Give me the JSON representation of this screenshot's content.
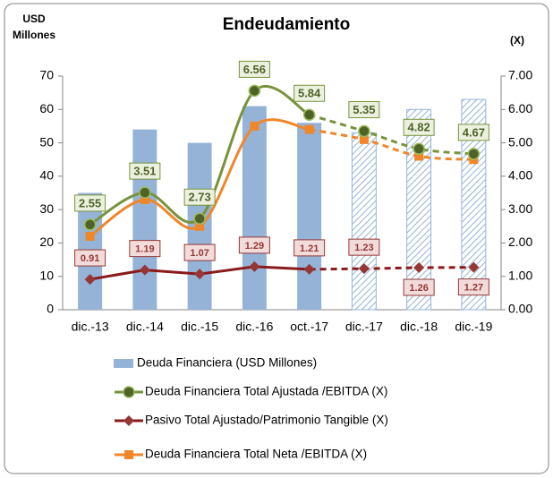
{
  "chart_data": {
    "type": "bar-line",
    "title": "Endeudamiento",
    "ylabel": "USD Millones",
    "y2label": "(X)",
    "categories": [
      "dic.-13",
      "dic.-14",
      "dic.-15",
      "dic.-16",
      "oct.-17",
      "dic.-17",
      "dic.-18",
      "dic.-19"
    ],
    "projected_from": 5,
    "ylim": [
      0,
      70
    ],
    "yticks": [
      0,
      10,
      20,
      30,
      40,
      50,
      60,
      70
    ],
    "y2lim": [
      0,
      7
    ],
    "y2ticks": [
      {
        "value": 0,
        "label": "0.00"
      },
      {
        "value": 1,
        "label": "1.00"
      },
      {
        "value": 2,
        "label": "2.00"
      },
      {
        "value": 3,
        "label": "3.00"
      },
      {
        "value": 4,
        "label": "4.00"
      },
      {
        "value": 5,
        "label": "5.00"
      },
      {
        "value": 6,
        "label": "6.00"
      },
      {
        "value": 7,
        "label": "7.00"
      }
    ],
    "series": [
      {
        "name": "Deuda Financiera (USD Millones)",
        "type": "bar",
        "color": "#95b3d7",
        "values": [
          35,
          54,
          50,
          61,
          56,
          53,
          60,
          63
        ]
      },
      {
        "name": "Deuda Financiera Total Ajustada /EBITDA (X)",
        "type": "line",
        "axis": "y2",
        "smooth": true,
        "marker": "circle",
        "color": "#77933c",
        "values": [
          2.55,
          3.51,
          2.73,
          6.56,
          5.84,
          5.35,
          4.82,
          4.67
        ],
        "value_label_position": [
          "above",
          "above",
          "above",
          "above",
          "above",
          "above",
          "above",
          "above"
        ]
      },
      {
        "name": "Pasivo Total Ajustado/Patrimonio Tangible (X)",
        "type": "line",
        "axis": "y2",
        "smooth": false,
        "marker": "diamond",
        "color": "#8b1a1a",
        "values": [
          0.91,
          1.19,
          1.07,
          1.29,
          1.21,
          1.23,
          1.26,
          1.27
        ],
        "value_label_position": [
          "above",
          "above",
          "above",
          "above",
          "above",
          "above",
          "below",
          "below"
        ]
      },
      {
        "name": "Deuda Financiera Total Neta /EBITDA (X)",
        "type": "line",
        "axis": "y2",
        "smooth": true,
        "marker": "square",
        "color": "#f0862a",
        "values": [
          2.2,
          3.3,
          2.5,
          5.5,
          5.4,
          5.1,
          4.6,
          4.5
        ]
      }
    ]
  }
}
